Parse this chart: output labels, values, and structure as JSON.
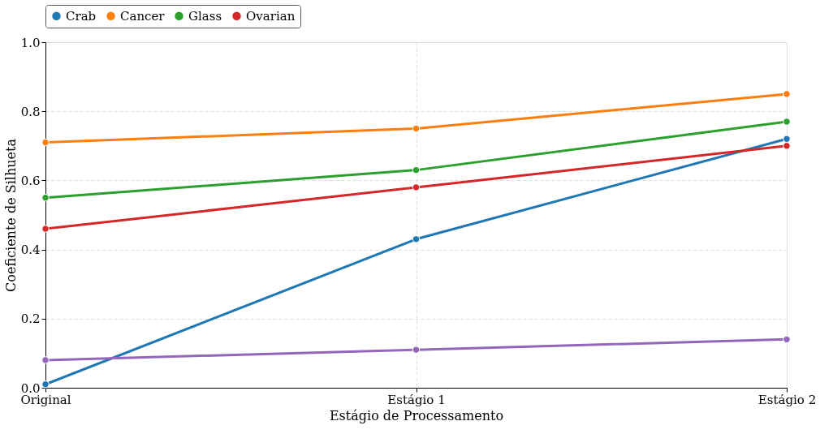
{
  "chart_data": {
    "type": "line",
    "xlabel": "Estágio de Processamento",
    "ylabel": "Coeficiente de Silhueta",
    "categories": [
      "Original",
      "Estágio 1",
      "Estágio 2"
    ],
    "series": [
      {
        "name": "Crab",
        "color": "#1f77b4",
        "values": [
          0.01,
          0.43,
          0.72
        ]
      },
      {
        "name": "Cancer",
        "color": "#ff7f0e",
        "values": [
          0.71,
          0.75,
          0.85
        ]
      },
      {
        "name": "Glass",
        "color": "#2ca02c",
        "values": [
          0.55,
          0.63,
          0.77
        ]
      },
      {
        "name": "Ovarian",
        "color": "#d62728",
        "values": [
          0.46,
          0.58,
          0.7
        ]
      },
      {
        "color": "#9467bd",
        "values": [
          0.08,
          0.11,
          0.14
        ]
      }
    ],
    "ylim": [
      0,
      1
    ],
    "yticks": [
      {
        "value": 0,
        "label": "0.0"
      },
      0.2,
      0.4,
      0.6,
      0.8,
      {
        "value": 1,
        "label": "1.0"
      }
    ],
    "grid": true,
    "legend": "top",
    "marker": "circle",
    "line_style": "solid"
  }
}
